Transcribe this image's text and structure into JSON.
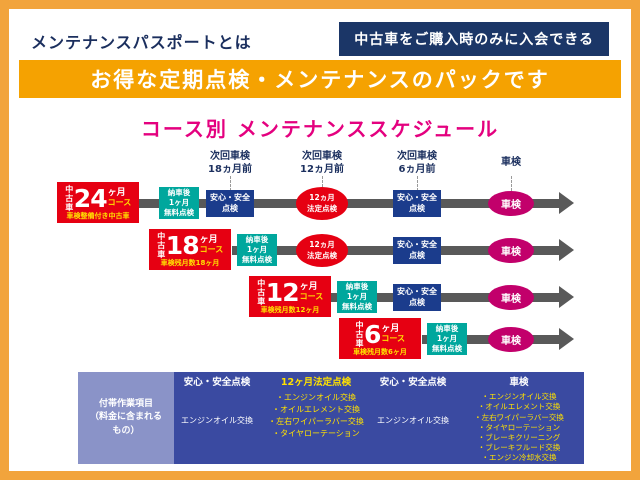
{
  "header": {
    "title": "メンテナンスパスポートとは",
    "badge": "中古車をご購入時のみに入会できる",
    "banner": "お得な定期点検・メンテナンスのパックです"
  },
  "schedule": {
    "title": "コース別 メンテナンススケジュール",
    "columns": [
      {
        "l1": "次回車検",
        "l2": "18ヵ月前"
      },
      {
        "l1": "次回車検",
        "l2": "12ヵ月前"
      },
      {
        "l1": "次回車検",
        "l2": "6ヵ月前"
      },
      {
        "l1": "車検",
        "l2": ""
      }
    ],
    "rows": [
      {
        "vertical": "中古車",
        "number": "24",
        "unit": "ヶ月",
        "suffix": "コース",
        "caption": "車検整備付き中古車"
      },
      {
        "vertical": "中古車",
        "number": "18",
        "unit": "ヶ月",
        "suffix": "コース",
        "caption": "車検残月数18ヶ月"
      },
      {
        "vertical": "中古車",
        "number": "12",
        "unit": "ヶ月",
        "suffix": "コース",
        "caption": "車検残月数12ヶ月"
      },
      {
        "vertical": "中古車",
        "number": "6",
        "unit": "ヶ月",
        "suffix": "コース",
        "caption": "車検残月数6ヶ月"
      }
    ],
    "markers": {
      "delivery_l1": "納車後",
      "delivery_l2": "1ヶ月",
      "delivery_l3": "無料点検",
      "safety_l1": "安心・安全",
      "safety_l2": "点検",
      "legal_l1": "12ヵ月",
      "legal_l2": "法定点検",
      "shaken": "車検"
    }
  },
  "table": {
    "left_l1": "付帯作業項目",
    "left_l2": "（料金に含まれる",
    "left_l3": "もの）",
    "columns": [
      {
        "header": "安心・安全点検",
        "items": [
          "エンジンオイル交換"
        ]
      },
      {
        "header": "12ヶ月法定点検",
        "items": [
          "・エンジンオイル交換",
          "・オイルエレメント交換",
          "・左右ワイパーラバー交換",
          "・タイヤローテーション"
        ]
      },
      {
        "header": "安心・安全点検",
        "items": [
          "エンジンオイル交換"
        ]
      },
      {
        "header": "車検",
        "items": [
          "・エンジンオイル交換",
          "・オイルエレメント交換",
          "・左右ワイパーラバー交換",
          "・タイヤローテーション",
          "・ブレーキクリーニング",
          "・ブレーキフルード交換",
          "・エンジン冷却水交換"
        ]
      }
    ]
  },
  "colors": {
    "frame_orange": "#F2A43C",
    "banner_orange": "#F5A201",
    "navy": "#1B3667",
    "title_magenta": "#E4007F",
    "course_red": "#E60012",
    "delivery_teal": "#00A79D",
    "safety_blue": "#1B3C8C",
    "shaken_magenta": "#C2006B",
    "arrow_gray": "#595959",
    "table_blue": "#3A4AA1",
    "table_left_purple": "#8A93C8",
    "accent_yellow": "#FFE100"
  }
}
